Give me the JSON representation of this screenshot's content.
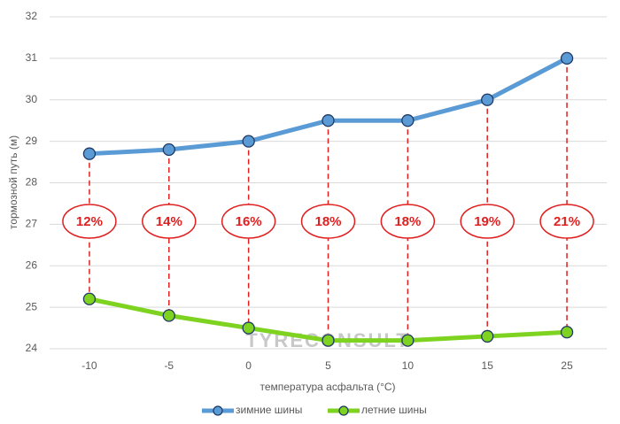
{
  "chart_data": {
    "type": "line",
    "y_label": "тормозной путь (м)",
    "x_label": "температура асфальта (°C)",
    "categories": [
      "-10",
      "-5",
      "0",
      "5",
      "10",
      "15",
      "25"
    ],
    "series": [
      {
        "name": "зимние шины",
        "color": "#5b9bd5",
        "values": [
          28.7,
          28.8,
          29.0,
          29.5,
          29.5,
          30.0,
          31.0
        ]
      },
      {
        "name": "летние шины",
        "color": "#7ed321",
        "values": [
          25.2,
          24.8,
          24.5,
          24.2,
          24.2,
          24.3,
          24.4
        ]
      }
    ],
    "annotations": [
      "12%",
      "14%",
      "16%",
      "18%",
      "18%",
      "19%",
      "21%"
    ],
    "annotation_color": "#e02020",
    "watermark": "TYRECONSULT",
    "ylim": [
      24,
      32
    ],
    "yticks": [
      24,
      25,
      26,
      27,
      28,
      29,
      30,
      31,
      32
    ],
    "grid": true,
    "legend": "bottom"
  }
}
